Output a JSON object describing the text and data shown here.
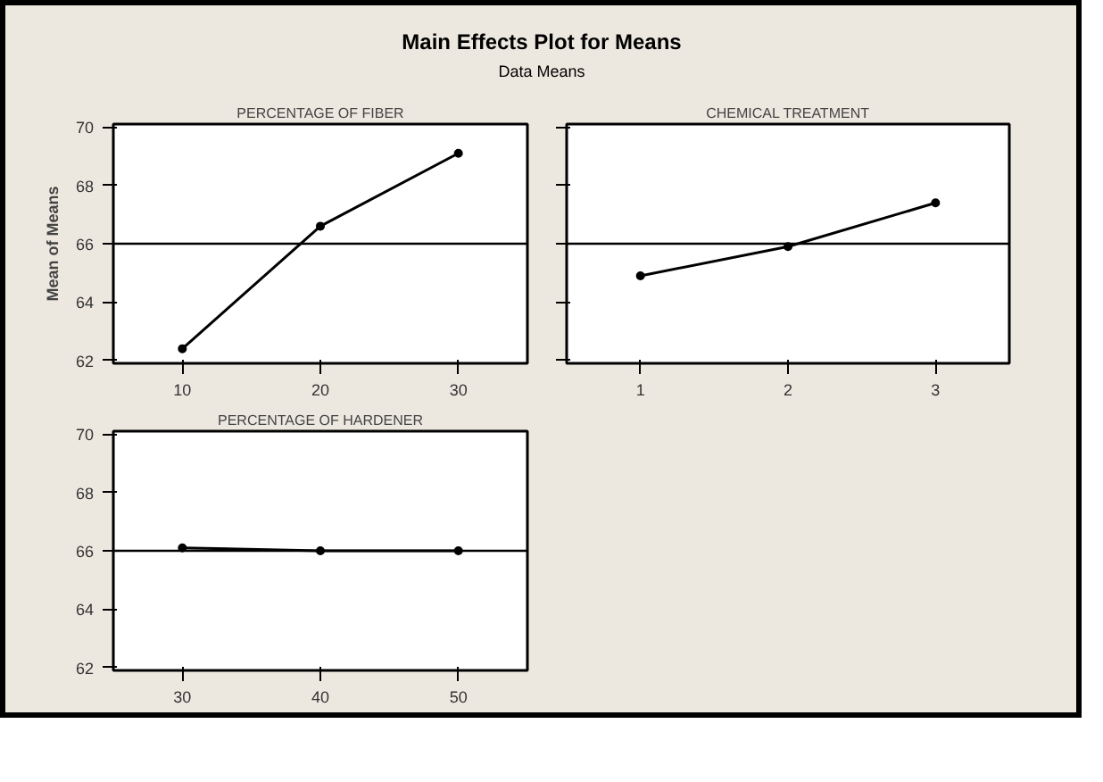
{
  "chart_data": [
    {
      "type": "other",
      "title": "Main Effects Plot for Means",
      "subtitle": "Data Means"
    },
    {
      "type": "line",
      "title": "PERCENTAGE OF FIBER",
      "ylabel": "Mean of Means",
      "x": [
        10,
        20,
        30
      ],
      "series": [
        {
          "color": "#000000",
          "values": [
            62.4,
            66.6,
            69.1
          ]
        }
      ],
      "xlim": [
        5,
        35
      ],
      "xticks": [
        10,
        20,
        30
      ],
      "ylim": [
        61.9,
        70.1
      ],
      "yticks": [
        62,
        64,
        66,
        68,
        70
      ],
      "ref_lines": [
        {
          "axis": "y",
          "value": 66,
          "color": "#000000"
        }
      ],
      "marker": "circle",
      "line_style": "solid",
      "grid": false
    },
    {
      "type": "line",
      "title": "CHEMICAL TREATMENT",
      "x": [
        1,
        2,
        3
      ],
      "series": [
        {
          "color": "#000000",
          "values": [
            64.9,
            65.9,
            67.4
          ]
        }
      ],
      "xlim": [
        0.5,
        3.5
      ],
      "xticks": [
        1,
        2,
        3
      ],
      "ylim": [
        61.9,
        70.1
      ],
      "yticks": [
        62,
        64,
        66,
        68,
        70
      ],
      "ref_lines": [
        {
          "axis": "y",
          "value": 66,
          "color": "#000000"
        }
      ],
      "marker": "circle",
      "line_style": "solid",
      "grid": false,
      "tick_labels": "x"
    },
    {
      "type": "line",
      "title": "PERCENTAGE OF HARDENER",
      "x": [
        30,
        40,
        50
      ],
      "series": [
        {
          "color": "#000000",
          "values": [
            66.1,
            66.0,
            66.0
          ]
        }
      ],
      "xlim": [
        25,
        55
      ],
      "xticks": [
        30,
        40,
        50
      ],
      "ylim": [
        61.9,
        70.1
      ],
      "yticks": [
        62,
        64,
        66,
        68,
        70
      ],
      "ref_lines": [
        {
          "axis": "y",
          "value": 66,
          "color": "#000000"
        }
      ],
      "marker": "circle",
      "line_style": "solid",
      "grid": false
    }
  ]
}
